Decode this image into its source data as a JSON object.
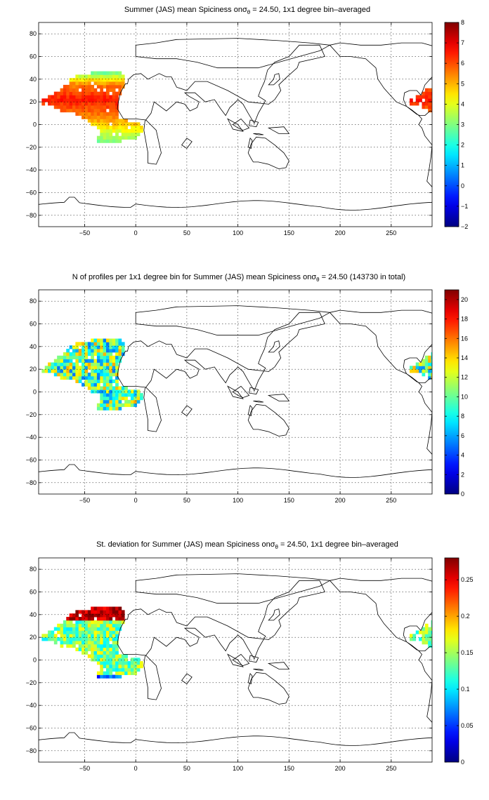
{
  "colors": {
    "land_outline": "#000000",
    "grid": "#000000",
    "colormap": "jet"
  },
  "chart_data": [
    {
      "type": "heatmap",
      "title": {
        "prefix": "Summer (JAS) mean Spiciness on",
        "symbol": "σ",
        "subscript": "θ",
        "suffix": " = 24.50, 1x1 degree bin–averaged"
      },
      "xlabel": "",
      "ylabel": "",
      "xlim": [
        -95,
        290
      ],
      "ylim": [
        -90,
        90
      ],
      "xticks": [
        -50,
        0,
        50,
        100,
        150,
        200,
        250
      ],
      "xtick_labels": [
        "−50",
        "0",
        "50",
        "100",
        "150",
        "200",
        "250"
      ],
      "yticks": [
        80,
        60,
        40,
        20,
        0,
        -20,
        -40,
        -60,
        -80
      ],
      "ytick_labels": [
        "80",
        "60",
        "40",
        "20",
        "0",
        "−20",
        "−40",
        "−60",
        "−80"
      ],
      "grid": true,
      "colorbar": {
        "location": "right",
        "range": [
          -2,
          8
        ],
        "ticks": [
          8,
          7,
          6,
          5,
          4,
          3,
          2,
          1,
          0,
          -1,
          -2
        ],
        "tick_labels": [
          "8",
          "7",
          "6",
          "5",
          "4",
          "3",
          "2",
          "1",
          "0",
          "−1",
          "−2"
        ]
      }
    },
    {
      "type": "heatmap",
      "title": {
        "prefix": "N of profiles per 1x1 degree bin for Summer (JAS) mean Spiciness on",
        "symbol": "σ",
        "subscript": "θ",
        "suffix": " = 24.50 (143730 in total)"
      },
      "xlabel": "",
      "ylabel": "",
      "xlim": [
        -95,
        290
      ],
      "ylim": [
        -90,
        90
      ],
      "xticks": [
        -50,
        0,
        50,
        100,
        150,
        200,
        250
      ],
      "xtick_labels": [
        "−50",
        "0",
        "50",
        "100",
        "150",
        "200",
        "250"
      ],
      "yticks": [
        80,
        60,
        40,
        20,
        0,
        -20,
        -40,
        -60,
        -80
      ],
      "ytick_labels": [
        "80",
        "60",
        "40",
        "20",
        "0",
        "−20",
        "−40",
        "−60",
        "−80"
      ],
      "grid": true,
      "colorbar": {
        "location": "right",
        "range": [
          0,
          21
        ],
        "ticks": [
          20,
          18,
          16,
          14,
          12,
          10,
          8,
          6,
          4,
          2,
          0
        ],
        "tick_labels": [
          "20",
          "18",
          "16",
          "14",
          "12",
          "10",
          "8",
          "6",
          "4",
          "2",
          "0"
        ]
      }
    },
    {
      "type": "heatmap",
      "title": {
        "prefix": "St. deviation for Summer (JAS) mean Spiciness on",
        "symbol": "σ",
        "subscript": "θ",
        "suffix": " = 24.50, 1x1 degree bin–averaged"
      },
      "xlabel": "",
      "ylabel": "",
      "xlim": [
        -95,
        290
      ],
      "ylim": [
        -90,
        90
      ],
      "xticks": [
        -50,
        0,
        50,
        100,
        150,
        200,
        250
      ],
      "xtick_labels": [
        "−50",
        "0",
        "50",
        "100",
        "150",
        "200",
        "250"
      ],
      "yticks": [
        80,
        60,
        40,
        20,
        0,
        -20,
        -40,
        -60,
        -80
      ],
      "ytick_labels": [
        "80",
        "60",
        "40",
        "20",
        "0",
        "−20",
        "−40",
        "−60",
        "−80"
      ],
      "grid": true,
      "colorbar": {
        "location": "right",
        "range": [
          0,
          0.28
        ],
        "ticks": [
          0.25,
          0.2,
          0.15,
          0.1,
          0.05,
          0
        ],
        "tick_labels": [
          "0.25",
          "0.2",
          "0.15",
          "0.1",
          "0.05",
          "0"
        ]
      }
    }
  ]
}
